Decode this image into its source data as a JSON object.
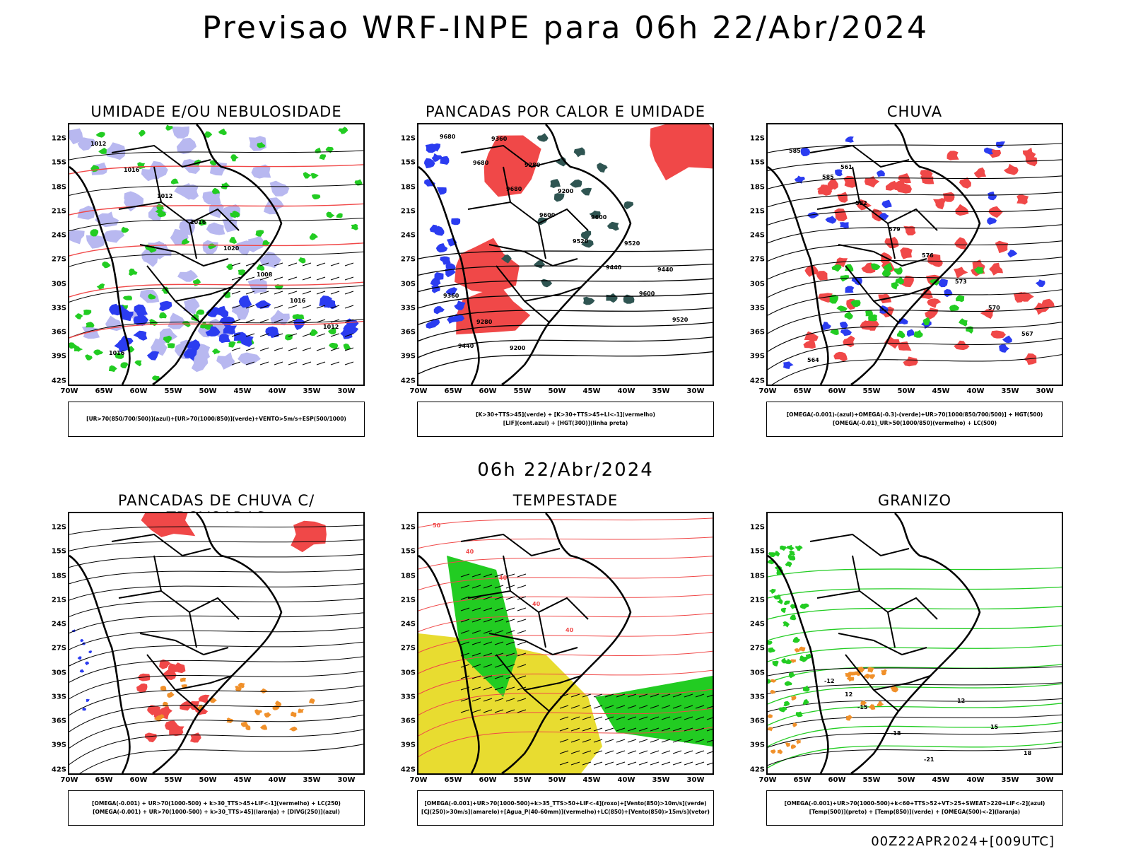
{
  "header": {
    "title": "Previsao WRF-INPE  para 06h 22/Abr/2024"
  },
  "middle_title": "06h 22/Abr/2024",
  "footer": "00Z22APR2024+[009UTC]",
  "axes": {
    "lat_ticks": [
      "12S",
      "15S",
      "18S",
      "21S",
      "24S",
      "27S",
      "30S",
      "33S",
      "36S",
      "39S",
      "42S"
    ],
    "lon_ticks": [
      "70W",
      "65W",
      "60W",
      "55W",
      "50W",
      "45W",
      "40W",
      "35W",
      "30W"
    ]
  },
  "colors": {
    "blue": "#2b3cf0",
    "green": "#22cc22",
    "red": "#f04848",
    "orange": "#f0902a",
    "yellow": "#e8dc30",
    "dark_teal": "#2f5552",
    "lavender": "#b8b8f0"
  },
  "panels": [
    {
      "title": "UMIDADE E/OU NEBULOSIDADE",
      "legend_lines": [
        "[UR>70(850/700/500)](azul)+[UR>70(1000/850)](verde)+VENTO>5m/s+ESP(500/1000)"
      ],
      "contour_labels": [
        "1012",
        "1016",
        "1012",
        "1016",
        "1020",
        "1008",
        "1016",
        "1012",
        "1016"
      ]
    },
    {
      "title": "PANCADAS POR CALOR E UMIDADE",
      "legend_lines": [
        "[K>30+TTS>45](verde) + [K>30+TTS>45+LI<-1](vermelho)",
        "[LIF](cont.azul) + [HGT(300)](linha preta)"
      ],
      "contour_labels": [
        "9680",
        "9680",
        "9680",
        "9600",
        "9520",
        "9440",
        "9600",
        "9520",
        "9440",
        "9360",
        "9280",
        "9200",
        "9600",
        "9520",
        "9440",
        "9360",
        "9280",
        "9200"
      ]
    },
    {
      "title": "CHUVA",
      "legend_lines": [
        "[OMEGA(-0.001)-(azul)+OMEGA(-0.3)-(verde)+UR>70(1000/850/700/500)] + HGT(500)",
        "[OMEGA(-0.01)_UR>50(1000/850)(vermelho) + LC(500)"
      ],
      "contour_labels": [
        "585",
        "585",
        "582",
        "579",
        "576",
        "573",
        "570",
        "567",
        "564",
        "561"
      ]
    },
    {
      "title": "PANCADAS DE CHUVA C/ TROVOADAS",
      "legend_lines": [
        "[OMEGA(-0.001) + UR>70(1000-500) + k>30_TTS>45+LIF<-1](vermelho) + LC(250)",
        "[OMEGA(-0.001) + UR>70(1000-500) + k>30_TTS>45](laranja) + [DIVG(250)](azul)"
      ],
      "contour_labels": []
    },
    {
      "title": "TEMPESTADE",
      "legend_lines": [
        "[OMEGA(-0.001)+UR>70(1000-500)+k>35_TTS>50+LIF<-4](roxo)+[Vento(850)>10m/s](verde)",
        "[CJ(250)>30m/s](amarelo)+[Agua_P(40-60mm)](vermelho)+LC(850)+[Vento(850)>15m/s](vetor)"
      ],
      "contour_labels": [
        "50",
        "40",
        "40",
        "40",
        "40"
      ]
    },
    {
      "title": "GRANIZO",
      "legend_lines": [
        "[OMEGA(-0.001)+UR>70(1000-500)+k<60+TTS>52+VT>25+SWEAT>220+LIF<-2](azul)",
        "[Temp(500)](preto) + [Temp(850)](verde) + [OMEGA(500)<-2](laranja)"
      ],
      "contour_labels": [
        "-12",
        "-15",
        "-18",
        "-21",
        "12",
        "15",
        "18",
        "12"
      ]
    }
  ]
}
